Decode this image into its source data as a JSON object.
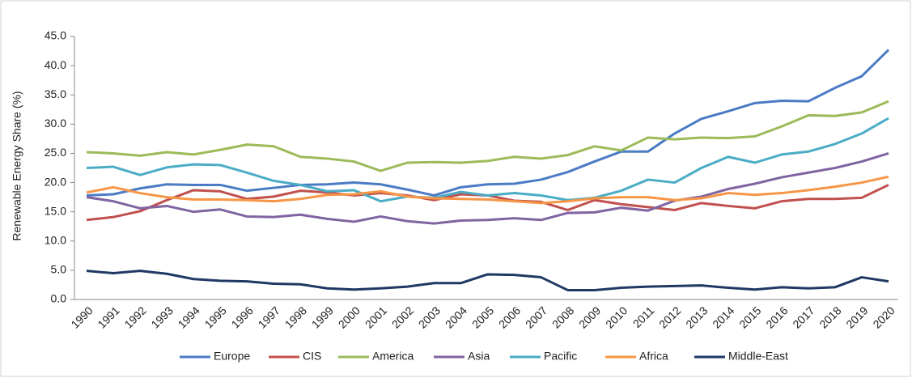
{
  "chart_data": {
    "type": "line",
    "y_label": "Renewable Energy Share (%)",
    "categories": [
      "1990",
      "1991",
      "1992",
      "1993",
      "1994",
      "1995",
      "1996",
      "1997",
      "1998",
      "1999",
      "2000",
      "2001",
      "2002",
      "2003",
      "2004",
      "2005",
      "2006",
      "2007",
      "2008",
      "2009",
      "2010",
      "2011",
      "2012",
      "2013",
      "2014",
      "2015",
      "2016",
      "2017",
      "2018",
      "2019",
      "2020"
    ],
    "series": [
      {
        "name": "Europe",
        "color": "#4a7bc4",
        "values": [
          17.8,
          18.0,
          19.0,
          19.7,
          19.6,
          19.6,
          18.6,
          19.1,
          19.6,
          19.7,
          20.0,
          19.7,
          18.8,
          17.8,
          19.2,
          19.7,
          19.8,
          20.5,
          21.8,
          23.6,
          25.3,
          25.3,
          28.4,
          30.9,
          32.2,
          33.6,
          34.0,
          33.9,
          36.2,
          38.2,
          42.7
        ]
      },
      {
        "name": "CIS",
        "color": "#c0504d",
        "values": [
          13.6,
          14.1,
          15.1,
          17.0,
          18.7,
          18.5,
          17.2,
          17.6,
          18.6,
          18.3,
          17.8,
          18.2,
          17.8,
          17.0,
          18.0,
          17.8,
          16.9,
          16.7,
          15.3,
          17.0,
          16.3,
          15.8,
          15.3,
          16.5,
          16.0,
          15.6,
          16.8,
          17.2,
          17.2,
          17.4,
          19.6
        ]
      },
      {
        "name": "America",
        "color": "#9bbb59",
        "values": [
          25.2,
          25.0,
          24.6,
          25.2,
          24.8,
          25.6,
          26.5,
          26.2,
          24.4,
          24.1,
          23.6,
          22.0,
          23.4,
          23.5,
          23.4,
          23.7,
          24.4,
          24.1,
          24.7,
          26.2,
          25.5,
          27.7,
          27.4,
          27.7,
          27.6,
          27.9,
          29.6,
          31.5,
          31.4,
          32.0,
          33.9
        ]
      },
      {
        "name": "Asia",
        "color": "#8064a2",
        "values": [
          17.5,
          16.8,
          15.6,
          16.0,
          15.0,
          15.4,
          14.2,
          14.1,
          14.5,
          13.8,
          13.3,
          14.2,
          13.4,
          13.0,
          13.5,
          13.6,
          13.9,
          13.6,
          14.8,
          14.9,
          15.7,
          15.2,
          16.9,
          17.6,
          18.9,
          19.8,
          20.9,
          21.7,
          22.5,
          23.6,
          25.0
        ]
      },
      {
        "name": "Pacific",
        "color": "#4bacc6",
        "values": [
          22.5,
          22.7,
          21.3,
          22.6,
          23.1,
          23.0,
          21.7,
          20.3,
          19.6,
          18.5,
          18.7,
          16.8,
          17.6,
          17.4,
          18.4,
          17.8,
          18.2,
          17.8,
          17.0,
          17.4,
          18.6,
          20.5,
          20.0,
          22.5,
          24.4,
          23.4,
          24.8,
          25.3,
          26.6,
          28.4,
          31.0
        ]
      },
      {
        "name": "Africa",
        "color": "#f79646",
        "values": [
          18.3,
          19.2,
          18.2,
          17.5,
          17.1,
          17.1,
          17.0,
          16.8,
          17.2,
          17.9,
          18.0,
          18.5,
          17.6,
          17.3,
          17.2,
          17.1,
          16.8,
          16.5,
          16.8,
          17.3,
          17.5,
          17.5,
          17.0,
          17.3,
          18.2,
          17.9,
          18.2,
          18.7,
          19.3,
          20.0,
          21.0
        ]
      },
      {
        "name": "Middle-East",
        "color": "#1f3864",
        "values": [
          4.9,
          4.5,
          4.9,
          4.4,
          3.5,
          3.2,
          3.1,
          2.7,
          2.6,
          1.9,
          1.7,
          1.9,
          2.2,
          2.8,
          2.8,
          4.3,
          4.2,
          3.8,
          1.6,
          1.6,
          2.0,
          2.2,
          2.3,
          2.4,
          2.0,
          1.7,
          2.1,
          1.9,
          2.1,
          3.8,
          3.1
        ]
      }
    ],
    "ylim": [
      0,
      45
    ],
    "yticks": [
      {
        "value": 0,
        "label": "0.0"
      },
      {
        "value": 5,
        "label": "5.0"
      },
      {
        "value": 10,
        "label": "10.0"
      },
      {
        "value": 15,
        "label": "15.0"
      },
      {
        "value": 20,
        "label": "20.0"
      },
      {
        "value": 25,
        "label": "25.0"
      },
      {
        "value": 30,
        "label": "30.0"
      },
      {
        "value": 35,
        "label": "35.0"
      },
      {
        "value": 40,
        "label": "40.0"
      },
      {
        "value": 45,
        "label": "45.0"
      }
    ],
    "grid": false,
    "legend": "bottom"
  }
}
